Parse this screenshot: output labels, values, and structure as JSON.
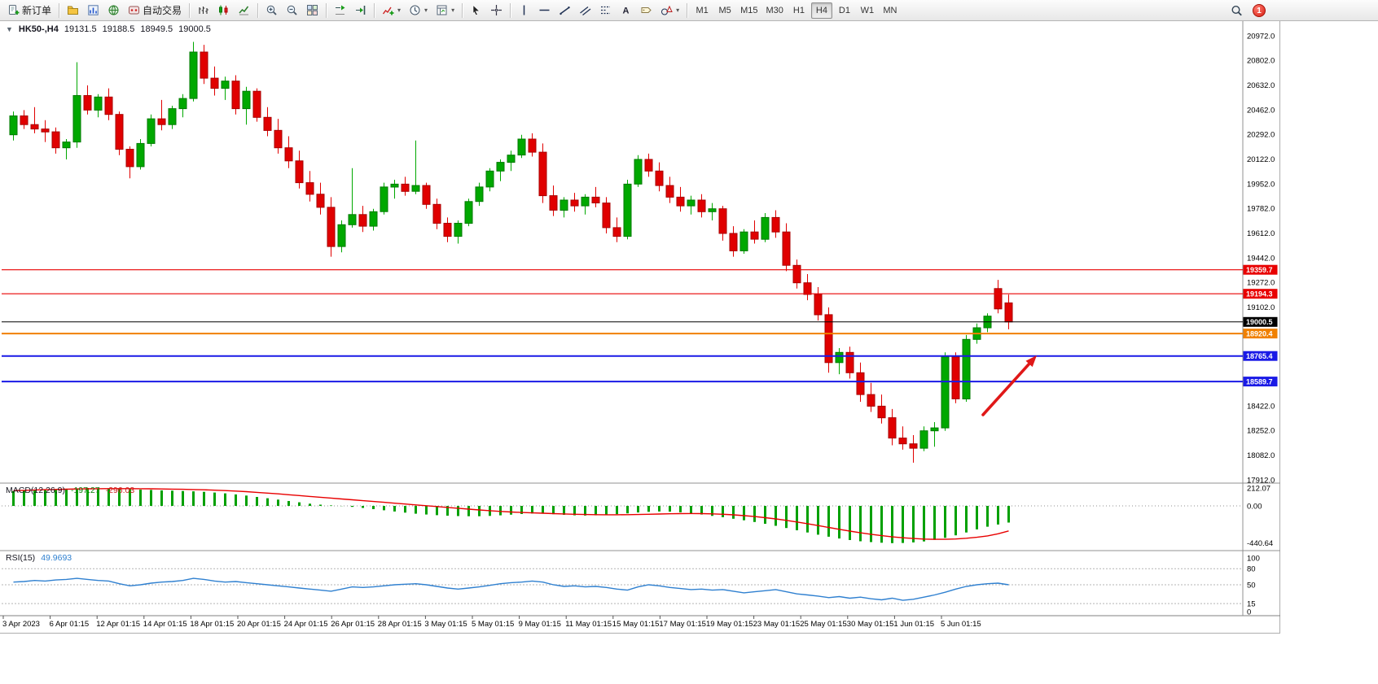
{
  "toolbar": {
    "buttons": [
      {
        "name": "new-order",
        "icon": "doc-plus",
        "label": "新订单"
      },
      {
        "div": true
      },
      {
        "name": "profile",
        "icon": "folder"
      },
      {
        "name": "market-watch",
        "icon": "chart-mini"
      },
      {
        "name": "navigator",
        "icon": "globe"
      },
      {
        "name": "autotrade",
        "icon": "autotrade",
        "label": "自动交易"
      },
      {
        "div": true
      },
      {
        "name": "bar-chart",
        "icon": "bars"
      },
      {
        "name": "candlestick-chart",
        "icon": "candles"
      },
      {
        "name": "line-chart",
        "icon": "linechart"
      },
      {
        "div": true
      },
      {
        "name": "zoom-in",
        "icon": "zoom-in"
      },
      {
        "name": "zoom-out",
        "icon": "zoom-out"
      },
      {
        "name": "tile-windows",
        "icon": "tile"
      },
      {
        "div": true
      },
      {
        "name": "auto-scroll",
        "icon": "autoscroll"
      },
      {
        "name": "chart-shift",
        "icon": "shift"
      },
      {
        "div": true
      },
      {
        "name": "indicators",
        "icon": "indicator",
        "caret": true
      },
      {
        "name": "periods",
        "icon": "clock",
        "caret": true
      },
      {
        "name": "templates",
        "icon": "template",
        "caret": true
      },
      {
        "div": true
      },
      {
        "name": "cursor",
        "icon": "cursor"
      },
      {
        "name": "crosshair",
        "icon": "crosshair"
      },
      {
        "div": true
      },
      {
        "name": "vertical-line",
        "icon": "vline"
      },
      {
        "name": "horizontal-line",
        "icon": "hline"
      },
      {
        "name": "trendline",
        "icon": "trend"
      },
      {
        "name": "equidistant-channel",
        "icon": "channel"
      },
      {
        "name": "fibonacci",
        "icon": "fibo"
      },
      {
        "name": "text",
        "icon": "text-a"
      },
      {
        "name": "text-label",
        "icon": "label-tag"
      },
      {
        "name": "arrows-shapes",
        "icon": "shapes",
        "caret": true
      },
      {
        "div": true
      }
    ],
    "timeframes": {
      "items": [
        "M1",
        "M5",
        "M15",
        "M30",
        "H1",
        "H4",
        "D1",
        "W1",
        "MN"
      ],
      "active": "H4"
    },
    "notification_count": "1"
  },
  "chart": {
    "header": {
      "symbol_period": "HK50-,H4",
      "open": "19131.5",
      "high": "19188.5",
      "low": "18949.5",
      "close": "19000.5"
    },
    "colors": {
      "up": "#00a800",
      "up_stroke": "#007a00",
      "down": "#e00000",
      "down_stroke": "#a80000"
    },
    "price_axis": [
      "20972.0",
      "20802.0",
      "20632.0",
      "20462.0",
      "20292.0",
      "20122.0",
      "19952.0",
      "19782.0",
      "19612.0",
      "19442.0",
      "19272.0",
      "19102.0",
      "18932.0",
      "18762.0",
      "18592.0",
      "18422.0",
      "18252.0",
      "18082.0",
      "17912.0"
    ],
    "price_lines": [
      {
        "value": 19359.7,
        "label": "19359.7",
        "color": "#e80000",
        "width": 1.2
      },
      {
        "value": 19194.3,
        "label": "19194.3",
        "color": "#e80000",
        "width": 1.2
      },
      {
        "value": 19000.5,
        "label": "19000.5",
        "color": "#000000",
        "width": 1
      },
      {
        "value": 18920.4,
        "label": "18920.4",
        "color": "#f08000",
        "width": 2
      },
      {
        "value": 18765.4,
        "label": "18765.4",
        "color": "#1a1ae6",
        "width": 2
      },
      {
        "value": 18589.7,
        "label": "18589.7",
        "color": "#1a1ae6",
        "width": 2
      }
    ],
    "annotation_arrow": {
      "from": [
        1207,
        484
      ],
      "to": [
        1273,
        411
      ],
      "color": "#e01818"
    },
    "candles": [
      [
        20290,
        20450,
        20250,
        20420
      ],
      [
        20420,
        20460,
        20330,
        20360
      ],
      [
        20360,
        20480,
        20300,
        20330
      ],
      [
        20330,
        20390,
        20240,
        20310
      ],
      [
        20310,
        20340,
        20160,
        20200
      ],
      [
        20200,
        20260,
        20120,
        20240
      ],
      [
        20240,
        20790,
        20200,
        20560
      ],
      [
        20560,
        20630,
        20430,
        20460
      ],
      [
        20460,
        20570,
        20410,
        20550
      ],
      [
        20550,
        20610,
        20390,
        20430
      ],
      [
        20430,
        20450,
        20150,
        20190
      ],
      [
        20190,
        20210,
        19990,
        20070
      ],
      [
        20070,
        20260,
        20050,
        20230
      ],
      [
        20230,
        20430,
        20210,
        20400
      ],
      [
        20400,
        20530,
        20320,
        20360
      ],
      [
        20360,
        20490,
        20330,
        20470
      ],
      [
        20470,
        20570,
        20410,
        20540
      ],
      [
        20540,
        20930,
        20520,
        20860
      ],
      [
        20860,
        20910,
        20640,
        20680
      ],
      [
        20680,
        20760,
        20560,
        20610
      ],
      [
        20610,
        20690,
        20530,
        20660
      ],
      [
        20660,
        20700,
        20430,
        20470
      ],
      [
        20470,
        20620,
        20360,
        20590
      ],
      [
        20590,
        20610,
        20380,
        20410
      ],
      [
        20410,
        20480,
        20280,
        20320
      ],
      [
        20320,
        20400,
        20160,
        20200
      ],
      [
        20200,
        20280,
        20060,
        20110
      ],
      [
        20110,
        20180,
        19920,
        19960
      ],
      [
        19960,
        20040,
        19830,
        19880
      ],
      [
        19880,
        19960,
        19740,
        19790
      ],
      [
        19790,
        19860,
        19450,
        19520
      ],
      [
        19520,
        19700,
        19480,
        19670
      ],
      [
        19670,
        20060,
        19650,
        19740
      ],
      [
        19740,
        19800,
        19620,
        19660
      ],
      [
        19660,
        19780,
        19630,
        19760
      ],
      [
        19760,
        19960,
        19740,
        19930
      ],
      [
        19930,
        19980,
        19850,
        19950
      ],
      [
        19950,
        20000,
        19870,
        19900
      ],
      [
        19900,
        20250,
        19880,
        19940
      ],
      [
        19940,
        19960,
        19780,
        19810
      ],
      [
        19810,
        19850,
        19640,
        19680
      ],
      [
        19680,
        19720,
        19550,
        19590
      ],
      [
        19590,
        19700,
        19540,
        19680
      ],
      [
        19680,
        19850,
        19660,
        19830
      ],
      [
        19830,
        19960,
        19800,
        19930
      ],
      [
        19930,
        20060,
        19900,
        20040
      ],
      [
        20040,
        20120,
        19970,
        20100
      ],
      [
        20100,
        20180,
        20040,
        20150
      ],
      [
        20150,
        20290,
        20130,
        20260
      ],
      [
        20260,
        20300,
        20140,
        20170
      ],
      [
        20170,
        20230,
        19820,
        19870
      ],
      [
        19870,
        19940,
        19730,
        19770
      ],
      [
        19770,
        19860,
        19720,
        19840
      ],
      [
        19840,
        19890,
        19760,
        19800
      ],
      [
        19800,
        19880,
        19740,
        19860
      ],
      [
        19860,
        19930,
        19790,
        19820
      ],
      [
        19820,
        19860,
        19610,
        19650
      ],
      [
        19650,
        19720,
        19550,
        19590
      ],
      [
        19590,
        19980,
        19570,
        19950
      ],
      [
        19950,
        20150,
        19930,
        20120
      ],
      [
        20120,
        20160,
        20000,
        20040
      ],
      [
        20040,
        20100,
        19900,
        19940
      ],
      [
        19940,
        20000,
        19820,
        19860
      ],
      [
        19860,
        19930,
        19760,
        19800
      ],
      [
        19800,
        19870,
        19740,
        19840
      ],
      [
        19840,
        19880,
        19720,
        19760
      ],
      [
        19760,
        19820,
        19700,
        19780
      ],
      [
        19780,
        19800,
        19560,
        19610
      ],
      [
        19610,
        19660,
        19450,
        19490
      ],
      [
        19490,
        19640,
        19470,
        19620
      ],
      [
        19620,
        19700,
        19540,
        19570
      ],
      [
        19570,
        19750,
        19550,
        19720
      ],
      [
        19720,
        19770,
        19580,
        19620
      ],
      [
        19620,
        19680,
        19350,
        19390
      ],
      [
        19390,
        19430,
        19230,
        19270
      ],
      [
        19270,
        19330,
        19150,
        19190
      ],
      [
        19190,
        19240,
        19010,
        19050
      ],
      [
        19050,
        19100,
        18650,
        18720
      ],
      [
        18720,
        18820,
        18640,
        18790
      ],
      [
        18790,
        18830,
        18610,
        18650
      ],
      [
        18650,
        18720,
        18450,
        18500
      ],
      [
        18500,
        18580,
        18380,
        18420
      ],
      [
        18420,
        18500,
        18300,
        18340
      ],
      [
        18340,
        18400,
        18150,
        18200
      ],
      [
        18200,
        18280,
        18120,
        18160
      ],
      [
        18160,
        18220,
        18030,
        18130
      ],
      [
        18130,
        18280,
        18110,
        18250
      ],
      [
        18250,
        18310,
        18140,
        18270
      ],
      [
        18270,
        18790,
        18250,
        18760
      ],
      [
        18760,
        18790,
        18440,
        18470
      ],
      [
        18470,
        18910,
        18450,
        18880
      ],
      [
        18880,
        18990,
        18850,
        18960
      ],
      [
        18960,
        19060,
        18930,
        19040
      ],
      [
        19230,
        19290,
        19060,
        19090
      ],
      [
        19131.5,
        19188.5,
        18949.5,
        19000.5
      ]
    ]
  },
  "macd": {
    "name": "MACD(12,26,9)",
    "value_main": "-197.27",
    "value_signal": "-296.03",
    "axis": [
      {
        "label": "212.07",
        "value": 212.07
      },
      {
        "label": "0.00",
        "value": 0
      },
      {
        "label": "-440.64",
        "value": -440.64
      }
    ],
    "histogram": [
      175,
      182,
      188,
      193,
      198,
      203,
      208,
      212,
      208,
      204,
      200,
      196,
      192,
      188,
      184,
      180,
      176,
      172,
      166,
      158,
      148,
      136,
      122,
      106,
      90,
      74,
      58,
      42,
      26,
      14,
      6,
      -2,
      -12,
      -24,
      -38,
      -52,
      -66,
      -80,
      -92,
      -102,
      -110,
      -116,
      -120,
      -122,
      -122,
      -118,
      -112,
      -104,
      -96,
      -90,
      -92,
      -98,
      -106,
      -112,
      -114,
      -112,
      -106,
      -98,
      -88,
      -78,
      -70,
      -66,
      -68,
      -76,
      -88,
      -102,
      -118,
      -134,
      -152,
      -170,
      -190,
      -212,
      -236,
      -262,
      -288,
      -314,
      -340,
      -364,
      -386,
      -404,
      -418,
      -428,
      -436,
      -440,
      -438,
      -432,
      -420,
      -402,
      -378,
      -348,
      -314,
      -278,
      -246,
      -220,
      -197
    ],
    "signal": [
      180,
      184,
      188,
      191,
      194,
      197,
      200,
      202,
      203,
      204,
      204,
      204,
      203,
      202,
      200,
      198,
      196,
      193,
      190,
      186,
      181,
      175,
      168,
      160,
      151,
      142,
      132,
      122,
      112,
      102,
      92,
      82,
      72,
      62,
      52,
      42,
      32,
      22,
      12,
      2,
      -8,
      -18,
      -28,
      -38,
      -48,
      -57,
      -65,
      -72,
      -78,
      -83,
      -87,
      -91,
      -95,
      -99,
      -102,
      -104,
      -105,
      -105,
      -104,
      -102,
      -99,
      -96,
      -93,
      -91,
      -90,
      -91,
      -94,
      -99,
      -106,
      -115,
      -126,
      -139,
      -154,
      -171,
      -190,
      -211,
      -233,
      -255,
      -277,
      -298,
      -318,
      -336,
      -352,
      -366,
      -377,
      -386,
      -392,
      -395,
      -395,
      -391,
      -383,
      -371,
      -355,
      -330,
      -296
    ]
  },
  "rsi": {
    "name": "RSI(15)",
    "value": "49.9693",
    "axis": [
      100,
      80,
      50,
      15,
      0
    ],
    "levels": [
      80,
      50,
      15
    ],
    "values": [
      55,
      56,
      58,
      57,
      59,
      60,
      62,
      60,
      58,
      57,
      52,
      48,
      50,
      53,
      55,
      56,
      58,
      62,
      60,
      57,
      55,
      56,
      54,
      52,
      50,
      48,
      46,
      44,
      42,
      40,
      38,
      42,
      46,
      45,
      46,
      48,
      50,
      51,
      52,
      50,
      47,
      44,
      42,
      44,
      46,
      49,
      52,
      54,
      55,
      57,
      55,
      50,
      47,
      48,
      46,
      47,
      45,
      42,
      40,
      46,
      50,
      48,
      45,
      43,
      41,
      42,
      40,
      41,
      38,
      35,
      37,
      39,
      41,
      37,
      33,
      31,
      29,
      26,
      28,
      25,
      27,
      24,
      22,
      25,
      21,
      23,
      27,
      31,
      36,
      42,
      47,
      50,
      52,
      53,
      50
    ]
  },
  "time_axis": [
    "3 Apr 2023",
    "6 Apr 01:15",
    "12 Apr 01:15",
    "14 Apr 01:15",
    "18 Apr 01:15",
    "20 Apr 01:15",
    "24 Apr 01:15",
    "26 Apr 01:15",
    "28 Apr 01:15",
    "3 May 01:15",
    "5 May 01:15",
    "9 May 01:15",
    "11 May 01:15",
    "15 May 01:15",
    "17 May 01:15",
    "19 May 01:15",
    "23 May 01:15",
    "25 May 01:15",
    "30 May 01:15",
    "1 Jun 01:15",
    "5 Jun 01:15"
  ]
}
